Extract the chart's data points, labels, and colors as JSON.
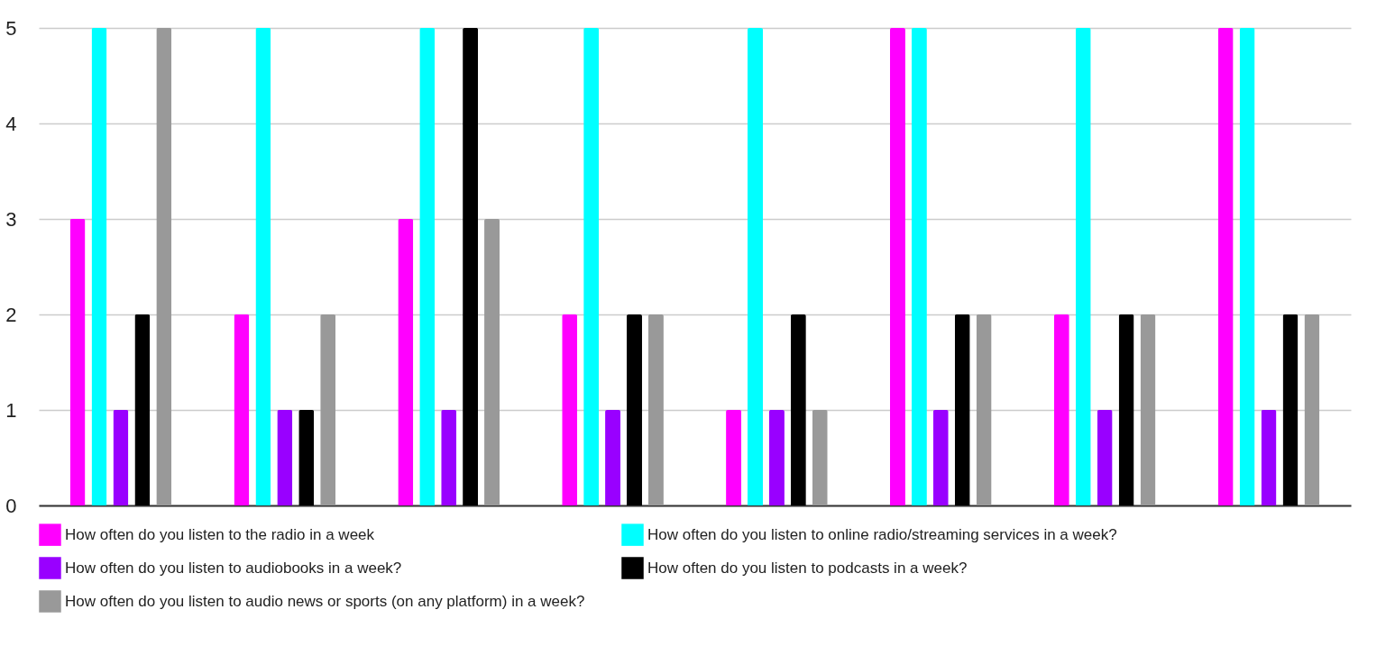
{
  "chart_data": {
    "type": "bar",
    "categories": [
      null,
      null,
      null,
      null,
      null,
      null,
      null,
      null
    ],
    "series": [
      {
        "name": "How often do you listen to the radio in a week",
        "color": "#ff00ff",
        "values": [
          3,
          2,
          3,
          2,
          1,
          5,
          2,
          5
        ]
      },
      {
        "name": "How often do you listen to online radio/streaming services in a week?",
        "color": "#00ffff",
        "values": [
          5,
          5,
          5,
          5,
          5,
          5,
          5,
          5
        ]
      },
      {
        "name": "How often do you listen to audiobooks in a week?",
        "color": "#9900ff",
        "values": [
          1,
          1,
          1,
          1,
          1,
          1,
          1,
          1
        ]
      },
      {
        "name": "How often do you listen to podcasts in a week?",
        "color": "#000000",
        "values": [
          2,
          1,
          5,
          2,
          2,
          2,
          2,
          2
        ]
      },
      {
        "name": "How often do you listen to audio news or sports (on any platform) in a week?",
        "color": "#999999",
        "values": [
          5,
          2,
          3,
          2,
          1,
          2,
          2,
          2
        ]
      }
    ],
    "ylim": [
      0,
      5
    ],
    "yticks": [
      0,
      1,
      2,
      3,
      4,
      5
    ],
    "grid": "y",
    "legend": "bottom"
  }
}
